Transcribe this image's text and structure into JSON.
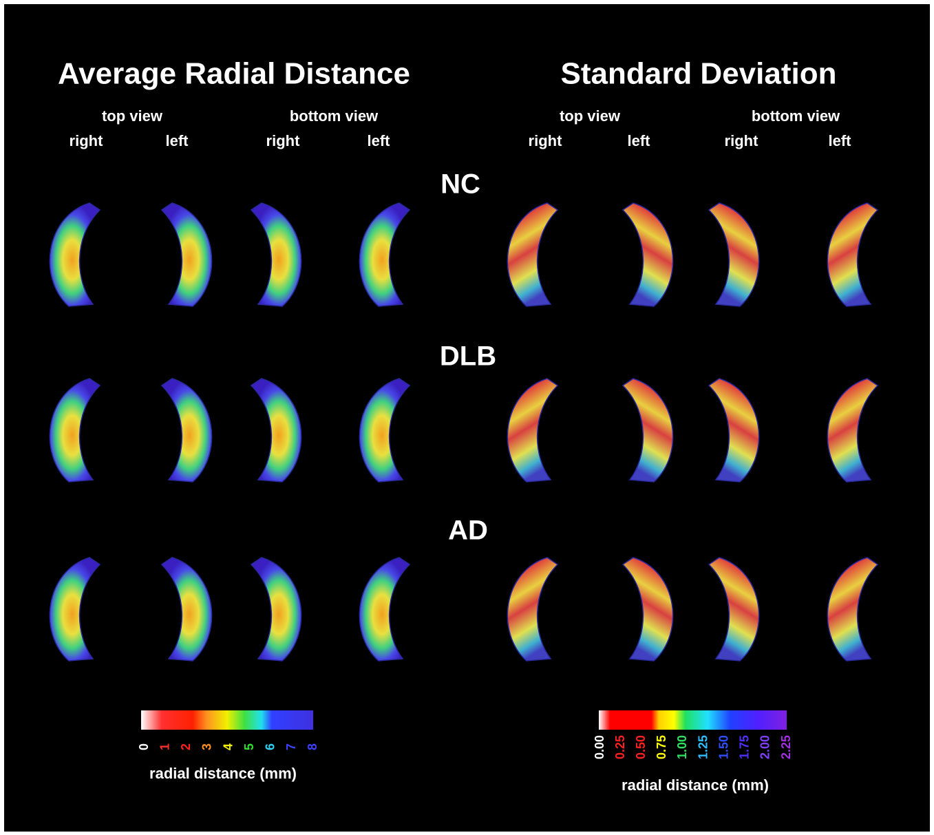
{
  "panels": [
    {
      "title": "Average Radial Distance",
      "views": [
        {
          "label": "top view",
          "sides": [
            "right",
            "left"
          ]
        },
        {
          "label": "bottom view",
          "sides": [
            "right",
            "left"
          ]
        }
      ],
      "colorbar": {
        "ticks": [
          "0",
          "1",
          "2",
          "3",
          "4",
          "5",
          "6",
          "7",
          "8"
        ],
        "label": "radial distance (mm)"
      }
    },
    {
      "title": "Standard Deviation",
      "views": [
        {
          "label": "top view",
          "sides": [
            "right",
            "left"
          ]
        },
        {
          "label": "bottom view",
          "sides": [
            "right",
            "left"
          ]
        }
      ],
      "colorbar": {
        "ticks": [
          "0.00",
          "0.25",
          "0.50",
          "0.75",
          "1.00",
          "1.25",
          "1.50",
          "1.75",
          "2.00",
          "2.25"
        ],
        "label": "radial distance (mm)"
      }
    }
  ],
  "groups": [
    "NC",
    "DLB",
    "AD"
  ]
}
